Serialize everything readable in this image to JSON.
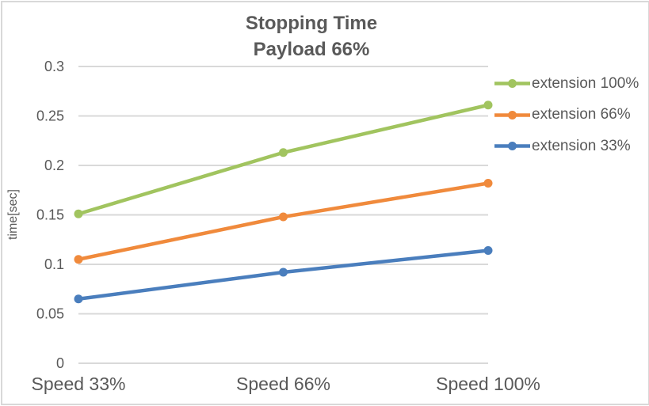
{
  "window": {
    "background_color": "#ffffff",
    "border_color": "#d9d9d9",
    "text_color": "#595959",
    "gridline_color": "#d9d9d9"
  },
  "chart_data": {
    "type": "line",
    "title": "Stopping Time",
    "subtitle": "Payload 66%",
    "xlabel": "",
    "ylabel": "time[sec]",
    "categories": [
      "Speed 33%",
      "Speed 66%",
      "Speed 100%"
    ],
    "series": [
      {
        "name": "extension 100%",
        "color": "#A1C45F",
        "values": [
          0.151,
          0.213,
          0.261
        ]
      },
      {
        "name": "extension 66%",
        "color": "#F08A3C",
        "values": [
          0.105,
          0.148,
          0.182
        ]
      },
      {
        "name": "extension 33%",
        "color": "#4A7EBD",
        "values": [
          0.065,
          0.092,
          0.114
        ]
      }
    ],
    "ylim": [
      0,
      0.3
    ],
    "yticks": [
      {
        "value": 0,
        "label": "0"
      },
      {
        "value": 0.05,
        "label": "0.05"
      },
      {
        "value": 0.1,
        "label": "0.1"
      },
      {
        "value": 0.15,
        "label": "0.15"
      },
      {
        "value": 0.2,
        "label": "0.2"
      },
      {
        "value": 0.25,
        "label": "0.25"
      },
      {
        "value": 0.3,
        "label": "0.3"
      }
    ],
    "grid": true,
    "legend_position": "right",
    "marker": "circle"
  }
}
